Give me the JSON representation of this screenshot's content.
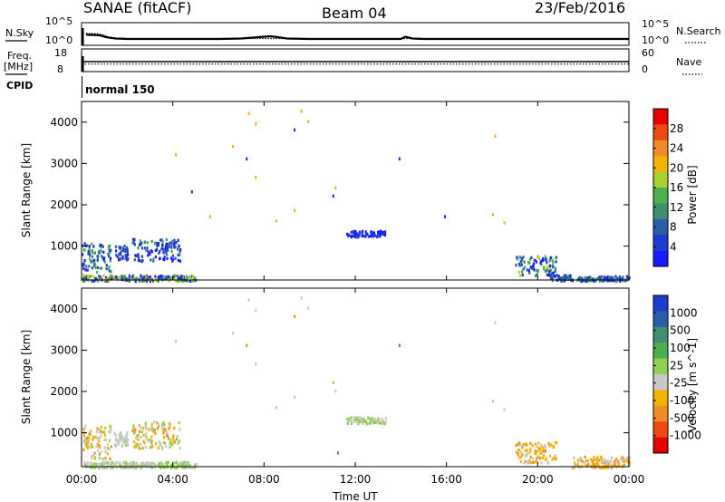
{
  "header": {
    "station": "SANAE (fitACF)",
    "beam": "Beam 04",
    "date": "23/Feb/2016"
  },
  "left_labels": {
    "nsky": "N.Sky",
    "freq_top": "Freq.",
    "freq_unit": "[MHz]",
    "cpid": "CPID"
  },
  "right_labels": {
    "nsearch": "N.Search",
    "nave": "Nave"
  },
  "cpid_text": "normal 150",
  "chart_data": [
    {
      "type": "line",
      "name": "noise",
      "series_labels_left": "N.Sky",
      "series_labels_right": "N.Search",
      "yticks_left": [
        "10^5",
        "10^0"
      ],
      "yticks_right": [
        "10^5",
        "10^0"
      ],
      "x": [
        0.2,
        0.3,
        0.5,
        0.8,
        1.0,
        1.2,
        1.5,
        2,
        3,
        4,
        5,
        6,
        7,
        7.5,
        8,
        8.3,
        8.6,
        9,
        10,
        11,
        12,
        13,
        14,
        14.2,
        14.5,
        15,
        16,
        17,
        18,
        19,
        20,
        21,
        22,
        23,
        24
      ],
      "sky": [
        2.4,
        2.3,
        2.3,
        2.2,
        1.9,
        1.7,
        1.5,
        1.4,
        1.4,
        1.4,
        1.4,
        1.4,
        1.5,
        1.7,
        1.9,
        2.0,
        1.8,
        1.5,
        1.4,
        1.4,
        1.4,
        1.4,
        1.4,
        1.9,
        1.5,
        1.4,
        1.4,
        1.4,
        1.4,
        1.4,
        1.4,
        1.4,
        1.4,
        1.4,
        1.4
      ],
      "search": [
        2.6,
        2.6,
        2.6,
        2.5,
        2.2,
        1.8,
        1.6,
        1.5,
        1.5,
        1.5,
        1.5,
        1.5,
        1.5,
        1.5,
        1.5,
        1.5,
        1.5,
        1.5,
        1.5,
        1.5,
        1.5,
        1.5,
        1.5,
        1.5,
        1.5,
        1.5,
        1.5,
        1.5,
        1.5,
        1.5,
        1.5,
        1.5,
        1.5,
        1.5,
        1.5
      ]
    },
    {
      "type": "line",
      "name": "frequency",
      "yticks_left": [
        "18",
        "8"
      ],
      "yticks_right": [
        "60",
        "0"
      ],
      "freq_mhz": 12.4,
      "nave": 20
    },
    {
      "type": "heatmap",
      "name": "power",
      "ylabel": "Slant Range [km]",
      "xlim": [
        0,
        24
      ],
      "ylim": [
        180,
        4500
      ],
      "yticks": [
        1000,
        2000,
        3000,
        4000
      ],
      "colorbar_label": "Power [dB]",
      "colorbar_ticks": [
        "28",
        "24",
        "20",
        "16",
        "12",
        "8",
        "4"
      ],
      "colorbar_colors": [
        "#e60000",
        "#f04a14",
        "#f28c28",
        "#f2b400",
        "#a6d22e",
        "#4caf50",
        "#3f8f6f",
        "#2a5caa",
        "#1e3cd0",
        "#1a1aff"
      ],
      "regions": [
        {
          "t": [
            0.0,
            1.3
          ],
          "r": [
            400,
            1100
          ],
          "v": [
            4,
            16
          ]
        },
        {
          "t": [
            1.4,
            2.0
          ],
          "r": [
            700,
            1050
          ],
          "v": [
            6,
            10
          ]
        },
        {
          "t": [
            2.2,
            4.3
          ],
          "r": [
            650,
            1200
          ],
          "v": [
            4,
            14
          ]
        },
        {
          "t": [
            0.0,
            5.0
          ],
          "r": [
            180,
            320
          ],
          "v": [
            4,
            20
          ]
        },
        {
          "t": [
            11.6,
            13.3
          ],
          "r": [
            1250,
            1400
          ],
          "v": [
            4,
            8
          ]
        },
        {
          "t": [
            19.0,
            20.8
          ],
          "r": [
            300,
            800
          ],
          "v": [
            4,
            18
          ]
        },
        {
          "t": [
            21.7,
            24.0
          ],
          "r": [
            180,
            300
          ],
          "v": [
            4,
            16
          ]
        },
        {
          "t": [
            20.5,
            21.5
          ],
          "r": [
            180,
            330
          ],
          "v": [
            6,
            12
          ]
        }
      ],
      "scatter": [
        {
          "t": 7.3,
          "r": 4250,
          "v": 20
        },
        {
          "t": 7.6,
          "r": 4000,
          "v": 20
        },
        {
          "t": 9.6,
          "r": 4300,
          "v": 20
        },
        {
          "t": 9.9,
          "r": 4050,
          "v": 20
        },
        {
          "t": 9.3,
          "r": 3850,
          "v": 4
        },
        {
          "t": 6.6,
          "r": 3450,
          "v": 20
        },
        {
          "t": 7.2,
          "r": 3150,
          "v": 4
        },
        {
          "t": 4.1,
          "r": 3250,
          "v": 20
        },
        {
          "t": 13.9,
          "r": 3150,
          "v": 4
        },
        {
          "t": 18.1,
          "r": 3700,
          "v": 20
        },
        {
          "t": 7.6,
          "r": 2700,
          "v": 20
        },
        {
          "t": 4.8,
          "r": 2350,
          "v": 4
        },
        {
          "t": 11.0,
          "r": 2250,
          "v": 4
        },
        {
          "t": 11.1,
          "r": 2450,
          "v": 16
        },
        {
          "t": 5.6,
          "r": 1750,
          "v": 16
        },
        {
          "t": 8.5,
          "r": 1650,
          "v": 16
        },
        {
          "t": 9.3,
          "r": 1900,
          "v": 20
        },
        {
          "t": 18.0,
          "r": 1800,
          "v": 20
        },
        {
          "t": 18.5,
          "r": 1600,
          "v": 16
        },
        {
          "t": 15.9,
          "r": 1750,
          "v": 4
        }
      ]
    },
    {
      "type": "heatmap",
      "name": "velocity",
      "ylabel": "Slant Range [km]",
      "xlabel": "Time UT",
      "xlim": [
        0,
        24
      ],
      "ylim": [
        180,
        4500
      ],
      "xticks": [
        "00:00",
        "04:00",
        "08:00",
        "12:00",
        "16:00",
        "20:00",
        "00:00"
      ],
      "yticks": [
        1000,
        2000,
        3000,
        4000
      ],
      "colorbar_label": "Velocity [m s^-1]",
      "colorbar_ticks": [
        "1000",
        "500",
        "100",
        "25",
        "-25",
        "-100",
        "-500",
        "-1000"
      ],
      "colorbar_colors": [
        "#1e3cd0",
        "#2a5caa",
        "#3f8f6f",
        "#4caf50",
        "#8fd14f",
        "#c8c8c8",
        "#f2b400",
        "#f28c28",
        "#f04a14",
        "#e60000"
      ],
      "regions": [
        {
          "t": [
            0.0,
            1.3
          ],
          "r": [
            400,
            1200
          ],
          "v": [
            -500,
            100
          ]
        },
        {
          "t": [
            1.4,
            2.0
          ],
          "r": [
            700,
            1050
          ],
          "v": [
            -100,
            25
          ]
        },
        {
          "t": [
            2.2,
            4.3
          ],
          "r": [
            650,
            1300
          ],
          "v": [
            -500,
            100
          ]
        },
        {
          "t": [
            0.0,
            5.0
          ],
          "r": [
            180,
            320
          ],
          "v": [
            -100,
            100
          ]
        },
        {
          "t": [
            11.6,
            13.3
          ],
          "r": [
            1250,
            1400
          ],
          "v": [
            -25,
            25
          ]
        },
        {
          "t": [
            19.0,
            20.8
          ],
          "r": [
            300,
            800
          ],
          "v": [
            -500,
            -100
          ]
        },
        {
          "t": [
            21.5,
            24.0
          ],
          "r": [
            180,
            450
          ],
          "v": [
            -500,
            -100
          ]
        }
      ],
      "scatter": [
        {
          "t": 7.3,
          "r": 4250,
          "v": -100
        },
        {
          "t": 7.6,
          "r": 4000,
          "v": -100
        },
        {
          "t": 9.6,
          "r": 4300,
          "v": -100
        },
        {
          "t": 9.9,
          "r": 4050,
          "v": -100
        },
        {
          "t": 9.3,
          "r": 3850,
          "v": -500
        },
        {
          "t": 6.6,
          "r": 3450,
          "v": -100
        },
        {
          "t": 7.2,
          "r": 3150,
          "v": -500
        },
        {
          "t": 4.1,
          "r": 3250,
          "v": -100
        },
        {
          "t": 13.9,
          "r": 3150,
          "v": 500
        },
        {
          "t": 18.1,
          "r": 3700,
          "v": -100
        },
        {
          "t": 7.6,
          "r": 2700,
          "v": -100
        },
        {
          "t": 11.0,
          "r": 2250,
          "v": 100
        },
        {
          "t": 11.1,
          "r": 2050,
          "v": -100
        },
        {
          "t": 8.5,
          "r": 1650,
          "v": -100
        },
        {
          "t": 9.3,
          "r": 1900,
          "v": -100
        },
        {
          "t": 18.0,
          "r": 1800,
          "v": -100
        },
        {
          "t": 18.5,
          "r": 1600,
          "v": -100
        },
        {
          "t": 11.2,
          "r": 550,
          "v": 500
        }
      ]
    }
  ]
}
